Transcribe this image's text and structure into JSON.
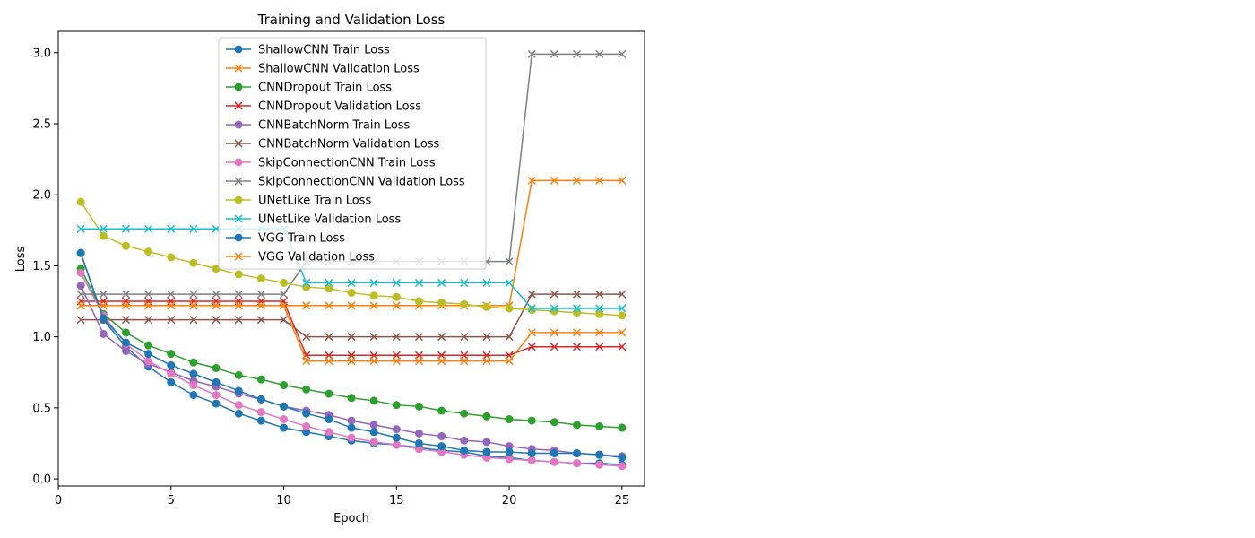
{
  "chart_data": {
    "type": "line",
    "title": "Training and Validation Loss",
    "xlabel": "Epoch",
    "ylabel": "Loss",
    "xlim": [
      0,
      26
    ],
    "ylim": [
      -0.05,
      3.15
    ],
    "xticks": [
      0,
      5,
      10,
      15,
      20,
      25
    ],
    "yticks": [
      0.0,
      0.5,
      1.0,
      1.5,
      2.0,
      2.5,
      3.0
    ],
    "xtick_labels": [
      "0",
      "5",
      "10",
      "15",
      "20",
      "25"
    ],
    "ytick_labels": [
      "0.0",
      "0.5",
      "1.0",
      "1.5",
      "2.0",
      "2.5",
      "3.0"
    ],
    "grid": false,
    "legend_position": "top-center",
    "x": [
      1,
      2,
      3,
      4,
      5,
      6,
      7,
      8,
      9,
      10,
      11,
      12,
      13,
      14,
      15,
      16,
      17,
      18,
      19,
      20,
      21,
      22,
      23,
      24,
      25
    ],
    "series": [
      {
        "name": "ShallowCNN Train Loss",
        "color": "#1f77b4",
        "marker": "o",
        "values": [
          1.59,
          1.12,
          0.93,
          0.79,
          0.68,
          0.59,
          0.53,
          0.46,
          0.41,
          0.36,
          0.33,
          0.3,
          0.27,
          0.25,
          0.24,
          0.22,
          0.2,
          0.19,
          0.16,
          0.15,
          0.13,
          0.12,
          0.11,
          0.11,
          0.1
        ]
      },
      {
        "name": "ShallowCNN Validation Loss",
        "color": "#ff7f0e",
        "marker": "x",
        "values": [
          1.22,
          1.22,
          1.22,
          1.22,
          1.22,
          1.22,
          1.22,
          1.22,
          1.22,
          1.22,
          1.22,
          1.22,
          1.22,
          1.22,
          1.22,
          1.22,
          1.22,
          1.22,
          1.22,
          1.22,
          2.1,
          2.1,
          2.1,
          2.1,
          2.1
        ]
      },
      {
        "name": "CNNDropout Train Loss",
        "color": "#2ca02c",
        "marker": "o",
        "values": [
          1.48,
          1.16,
          1.03,
          0.94,
          0.88,
          0.82,
          0.78,
          0.73,
          0.7,
          0.66,
          0.63,
          0.6,
          0.57,
          0.55,
          0.52,
          0.51,
          0.48,
          0.46,
          0.44,
          0.42,
          0.41,
          0.4,
          0.38,
          0.37,
          0.36
        ]
      },
      {
        "name": "CNNDropout Validation Loss",
        "color": "#d62728",
        "marker": "x",
        "values": [
          1.25,
          1.25,
          1.25,
          1.25,
          1.25,
          1.25,
          1.25,
          1.25,
          1.25,
          1.25,
          0.87,
          0.87,
          0.87,
          0.87,
          0.87,
          0.87,
          0.87,
          0.87,
          0.87,
          0.87,
          0.93,
          0.93,
          0.93,
          0.93,
          0.93
        ]
      },
      {
        "name": "CNNBatchNorm Train Loss",
        "color": "#9467bd",
        "marker": "o",
        "values": [
          1.36,
          1.02,
          0.9,
          0.81,
          0.75,
          0.69,
          0.65,
          0.6,
          0.56,
          0.51,
          0.48,
          0.45,
          0.41,
          0.38,
          0.35,
          0.32,
          0.3,
          0.27,
          0.26,
          0.23,
          0.21,
          0.2,
          0.18,
          0.17,
          0.16
        ]
      },
      {
        "name": "CNNBatchNorm Validation Loss",
        "color": "#8c564b",
        "marker": "x",
        "values": [
          1.12,
          1.12,
          1.12,
          1.12,
          1.12,
          1.12,
          1.12,
          1.12,
          1.12,
          1.12,
          1.0,
          1.0,
          1.0,
          1.0,
          1.0,
          1.0,
          1.0,
          1.0,
          1.0,
          1.0,
          1.3,
          1.3,
          1.3,
          1.3,
          1.3
        ]
      },
      {
        "name": "SkipConnectionCNN Train Loss",
        "color": "#e377c2",
        "marker": "o",
        "values": [
          1.45,
          1.15,
          0.95,
          0.83,
          0.74,
          0.66,
          0.59,
          0.52,
          0.47,
          0.42,
          0.37,
          0.33,
          0.29,
          0.26,
          0.24,
          0.21,
          0.19,
          0.17,
          0.15,
          0.14,
          0.13,
          0.12,
          0.11,
          0.1,
          0.09
        ]
      },
      {
        "name": "SkipConnectionCNN Validation Loss",
        "color": "#7f7f7f",
        "marker": "x",
        "values": [
          1.3,
          1.3,
          1.3,
          1.3,
          1.3,
          1.3,
          1.3,
          1.3,
          1.3,
          1.3,
          1.53,
          1.53,
          1.53,
          1.53,
          1.53,
          1.53,
          1.53,
          1.53,
          1.53,
          1.53,
          2.99,
          2.99,
          2.99,
          2.99,
          2.99
        ]
      },
      {
        "name": "UNetLike Train Loss",
        "color": "#bcbd22",
        "marker": "o",
        "values": [
          1.95,
          1.71,
          1.64,
          1.6,
          1.56,
          1.52,
          1.48,
          1.44,
          1.41,
          1.38,
          1.35,
          1.34,
          1.31,
          1.29,
          1.28,
          1.25,
          1.24,
          1.23,
          1.21,
          1.2,
          1.19,
          1.18,
          1.17,
          1.16,
          1.15
        ]
      },
      {
        "name": "UNetLike Validation Loss",
        "color": "#17becf",
        "marker": "x",
        "values": [
          1.76,
          1.76,
          1.76,
          1.76,
          1.76,
          1.76,
          1.76,
          1.76,
          1.76,
          1.76,
          1.38,
          1.38,
          1.38,
          1.38,
          1.38,
          1.38,
          1.38,
          1.38,
          1.38,
          1.38,
          1.2,
          1.2,
          1.2,
          1.2,
          1.2
        ]
      },
      {
        "name": "VGG Train Loss",
        "color": "#1f77b4",
        "marker": "o",
        "values": [
          1.59,
          1.13,
          0.96,
          0.88,
          0.8,
          0.74,
          0.68,
          0.62,
          0.56,
          0.51,
          0.46,
          0.42,
          0.36,
          0.33,
          0.29,
          0.25,
          0.23,
          0.2,
          0.19,
          0.19,
          0.18,
          0.18,
          0.18,
          0.17,
          0.15
        ]
      },
      {
        "name": "VGG Validation Loss",
        "color": "#ff7f0e",
        "marker": "x",
        "values": [
          1.22,
          1.22,
          1.22,
          1.22,
          1.22,
          1.22,
          1.22,
          1.22,
          1.22,
          1.22,
          0.83,
          0.83,
          0.83,
          0.83,
          0.83,
          0.83,
          0.83,
          0.83,
          0.83,
          0.83,
          1.03,
          1.03,
          1.03,
          1.03,
          1.03
        ]
      }
    ]
  }
}
